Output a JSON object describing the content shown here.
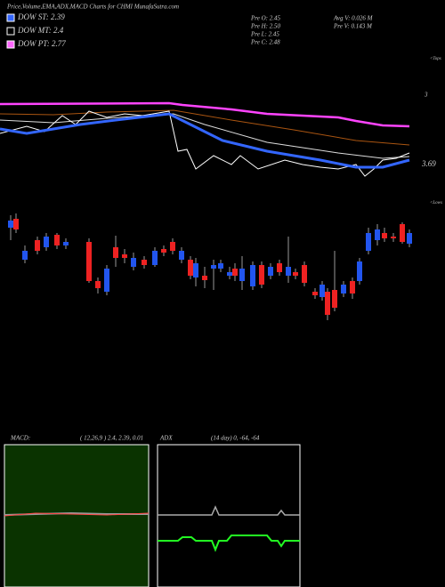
{
  "header": {
    "title": "Price,Volume,EMA,ADX,MACD Charts for CHMI MunafaSutra.com"
  },
  "legend": [
    {
      "label": "DOW ST: 2.39",
      "color": "#3366ff"
    },
    {
      "label": "DOW MT: 2.4",
      "color": "#000000"
    },
    {
      "label": "DOW PT: 2.77",
      "color": "#ff66ff"
    }
  ],
  "previous": [
    "Pre  O: 2.45",
    "Pre  H: 2.50",
    "Pre  L: 2.45",
    "Pre  C: 2.48"
  ],
  "volume": [
    "Avg V: 0.026  M",
    "Pre  V: 0.143 M"
  ],
  "side_labels": {
    "tops": "<Tops",
    "level_high": "3",
    "level_low": "3.69",
    "lows": "<Lows"
  },
  "macd": {
    "label": "MACD:",
    "params": "( 12,26,9 ) 2.4, 2.39, 0.01"
  },
  "adx": {
    "label": "ADX",
    "params": "(14  day) 0, -64, -64"
  }
}
